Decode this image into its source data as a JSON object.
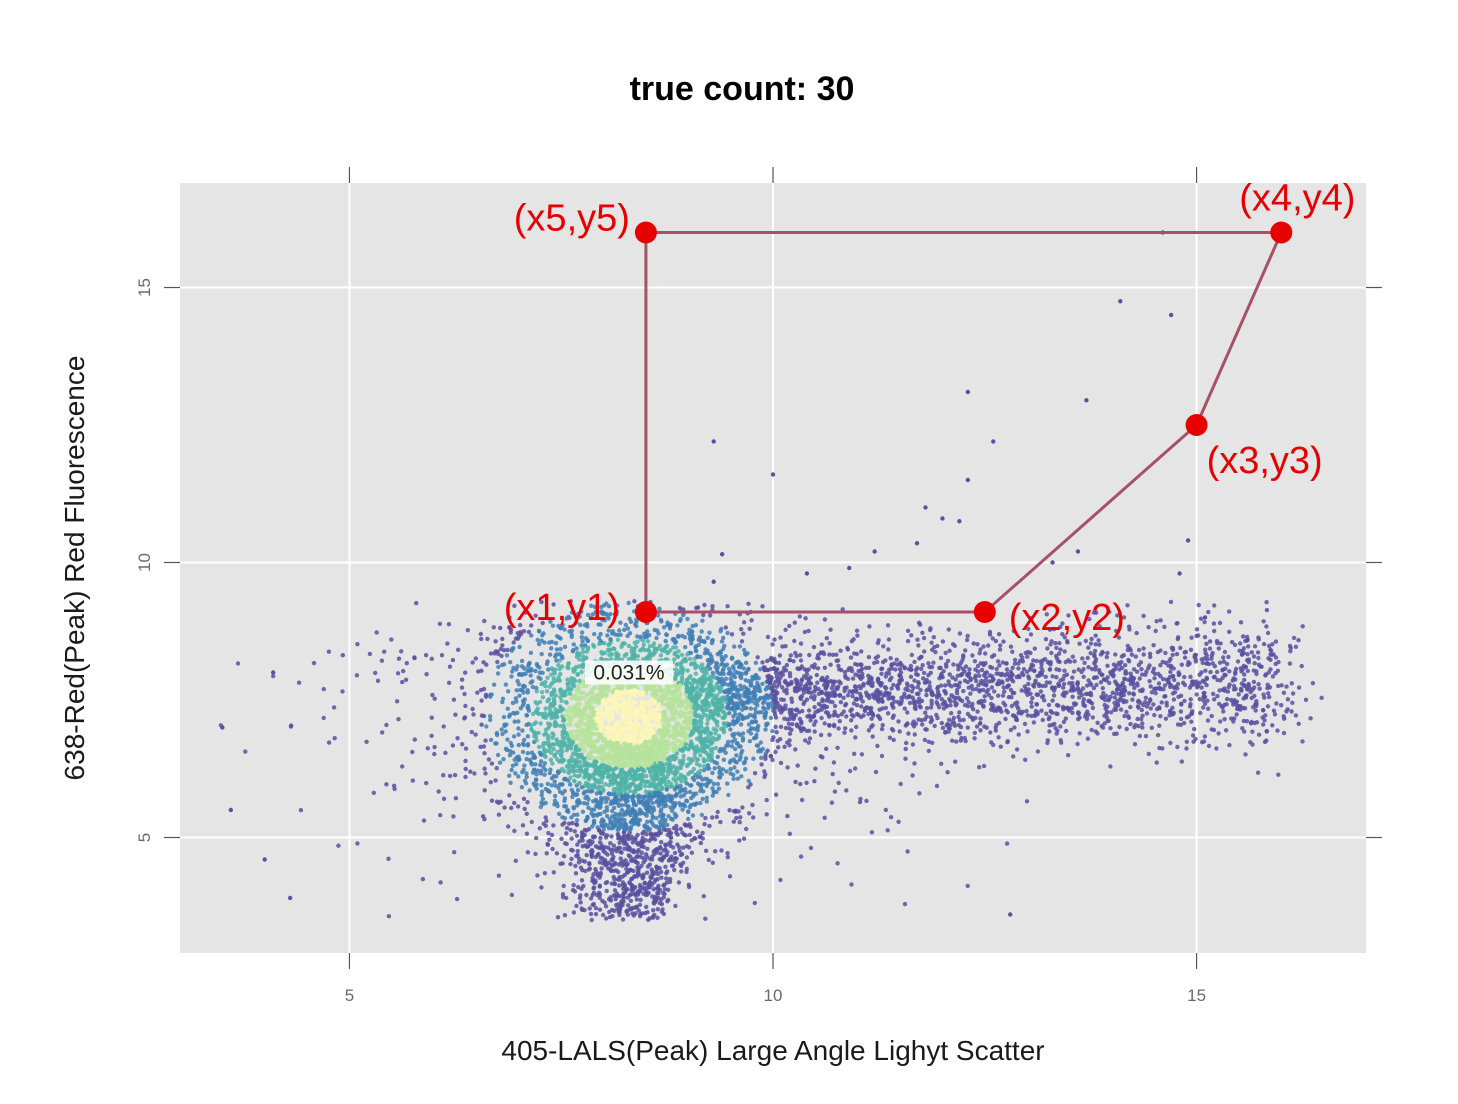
{
  "chart_data": {
    "type": "scatter",
    "title": "true count: 30",
    "xlabel": "405-LALS(Peak) Large Angle Lighyt Scatter",
    "ylabel": "638-Red(Peak) Red Fluorescence",
    "xlim": [
      3.0,
      17.0
    ],
    "ylim": [
      2.9,
      16.9
    ],
    "x_ticks": [
      5,
      10,
      15
    ],
    "y_ticks": [
      5,
      10,
      15
    ],
    "x_tick_labels": [
      "5",
      "10",
      "15"
    ],
    "y_tick_labels": [
      "5",
      "10",
      "15"
    ],
    "grid": true,
    "background_color": "#e5e5e5",
    "grid_color": "#ffffff",
    "density_colors": [
      "#5b4fa0",
      "#3f7fb5",
      "#4fb3a8",
      "#b6e39b",
      "#fbf6b7"
    ],
    "density_peak": {
      "x": 8.3,
      "y": 7.2
    },
    "population_label": {
      "text": "0.031%",
      "x": 8.3,
      "y": 8.0
    },
    "gate": {
      "color": "#a6506a",
      "vertex_color": "#e60000",
      "vertices": [
        {
          "label": "(x1,y1)",
          "x": 8.5,
          "y": 9.1
        },
        {
          "label": "(x2,y2)",
          "x": 12.5,
          "y": 9.1
        },
        {
          "label": "(x3,y3)",
          "x": 15.0,
          "y": 12.5
        },
        {
          "label": "(x4,y4)",
          "x": 16.0,
          "y": 16.0
        },
        {
          "label": "(x5,y5)",
          "x": 8.5,
          "y": 16.0
        }
      ]
    },
    "outlier_points": [
      {
        "x": 9.3,
        "y": 12.2
      },
      {
        "x": 10.0,
        "y": 11.6
      },
      {
        "x": 12.3,
        "y": 13.1
      },
      {
        "x": 12.3,
        "y": 11.5
      },
      {
        "x": 12.6,
        "y": 12.2
      },
      {
        "x": 13.7,
        "y": 12.95
      },
      {
        "x": 14.1,
        "y": 14.75
      },
      {
        "x": 14.7,
        "y": 14.5
      },
      {
        "x": 14.6,
        "y": 16.0
      },
      {
        "x": 11.8,
        "y": 11.0
      },
      {
        "x": 12.0,
        "y": 10.8
      },
      {
        "x": 12.2,
        "y": 10.75
      },
      {
        "x": 11.2,
        "y": 10.2
      },
      {
        "x": 11.7,
        "y": 10.35
      },
      {
        "x": 13.3,
        "y": 10.0
      },
      {
        "x": 13.6,
        "y": 10.2
      },
      {
        "x": 14.8,
        "y": 9.8
      },
      {
        "x": 14.9,
        "y": 10.4
      },
      {
        "x": 10.4,
        "y": 9.8
      },
      {
        "x": 9.4,
        "y": 10.15
      },
      {
        "x": 9.3,
        "y": 9.65
      },
      {
        "x": 15.1,
        "y": 9.0
      },
      {
        "x": 12.8,
        "y": 3.6
      },
      {
        "x": 4.3,
        "y": 3.9
      },
      {
        "x": 4.0,
        "y": 4.6
      },
      {
        "x": 3.6,
        "y": 5.5
      },
      {
        "x": 3.5,
        "y": 7.0
      },
      {
        "x": 4.1,
        "y": 8.0
      },
      {
        "x": 10.9,
        "y": 9.9
      }
    ]
  }
}
